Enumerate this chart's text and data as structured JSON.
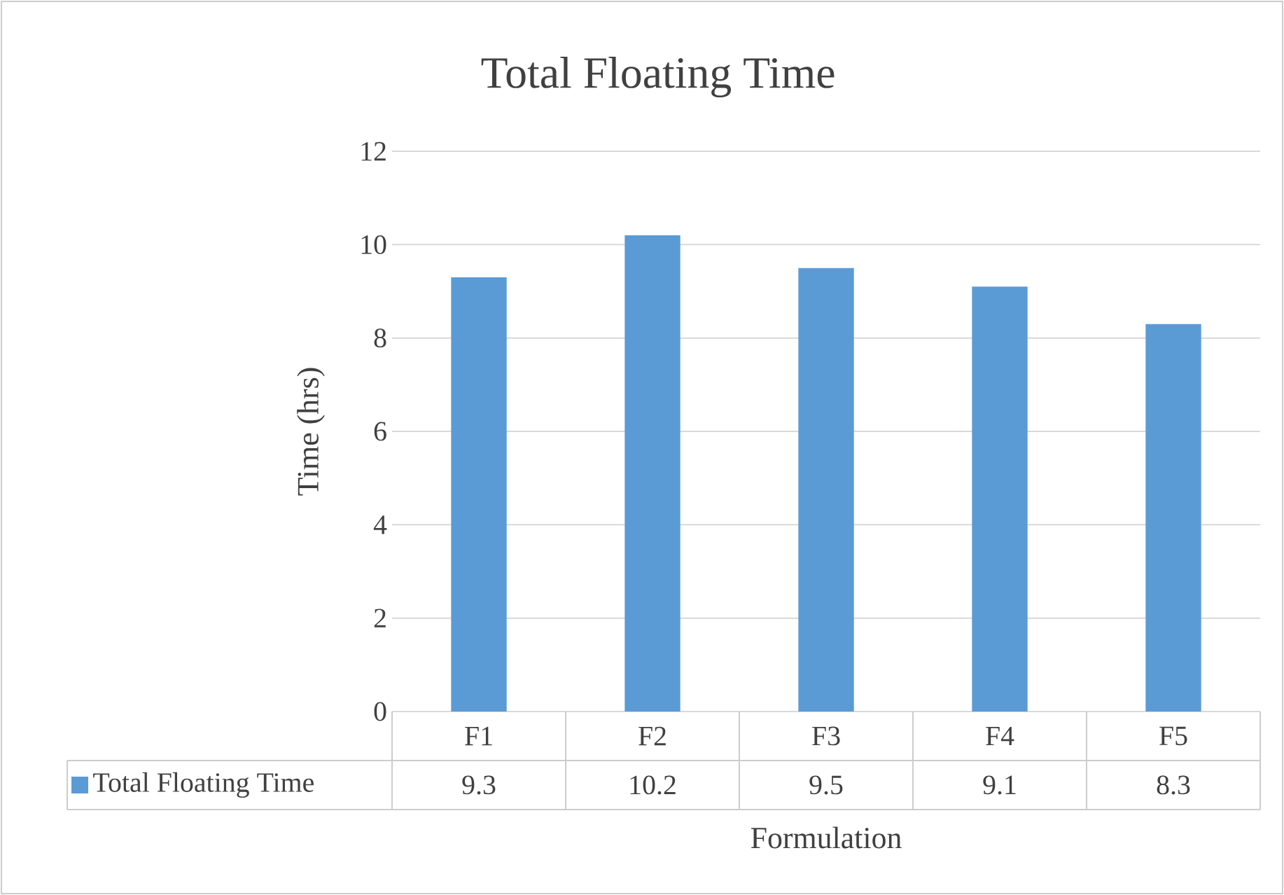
{
  "chart_data": {
    "type": "bar",
    "title": "Total Floating Time",
    "xlabel": "Formulation",
    "ylabel": "Time (hrs)",
    "categories": [
      "F1",
      "F2",
      "F3",
      "F4",
      "F5"
    ],
    "series": [
      {
        "name": "Total Floating Time",
        "color": "#5b9bd5",
        "values": [
          9.3,
          10.2,
          9.5,
          9.1,
          8.3
        ]
      }
    ],
    "ylim": [
      0,
      12
    ],
    "yticks": [
      0,
      2,
      4,
      6,
      8,
      10,
      12
    ],
    "grid": "y",
    "legend": "bottom",
    "data_labels": true
  }
}
